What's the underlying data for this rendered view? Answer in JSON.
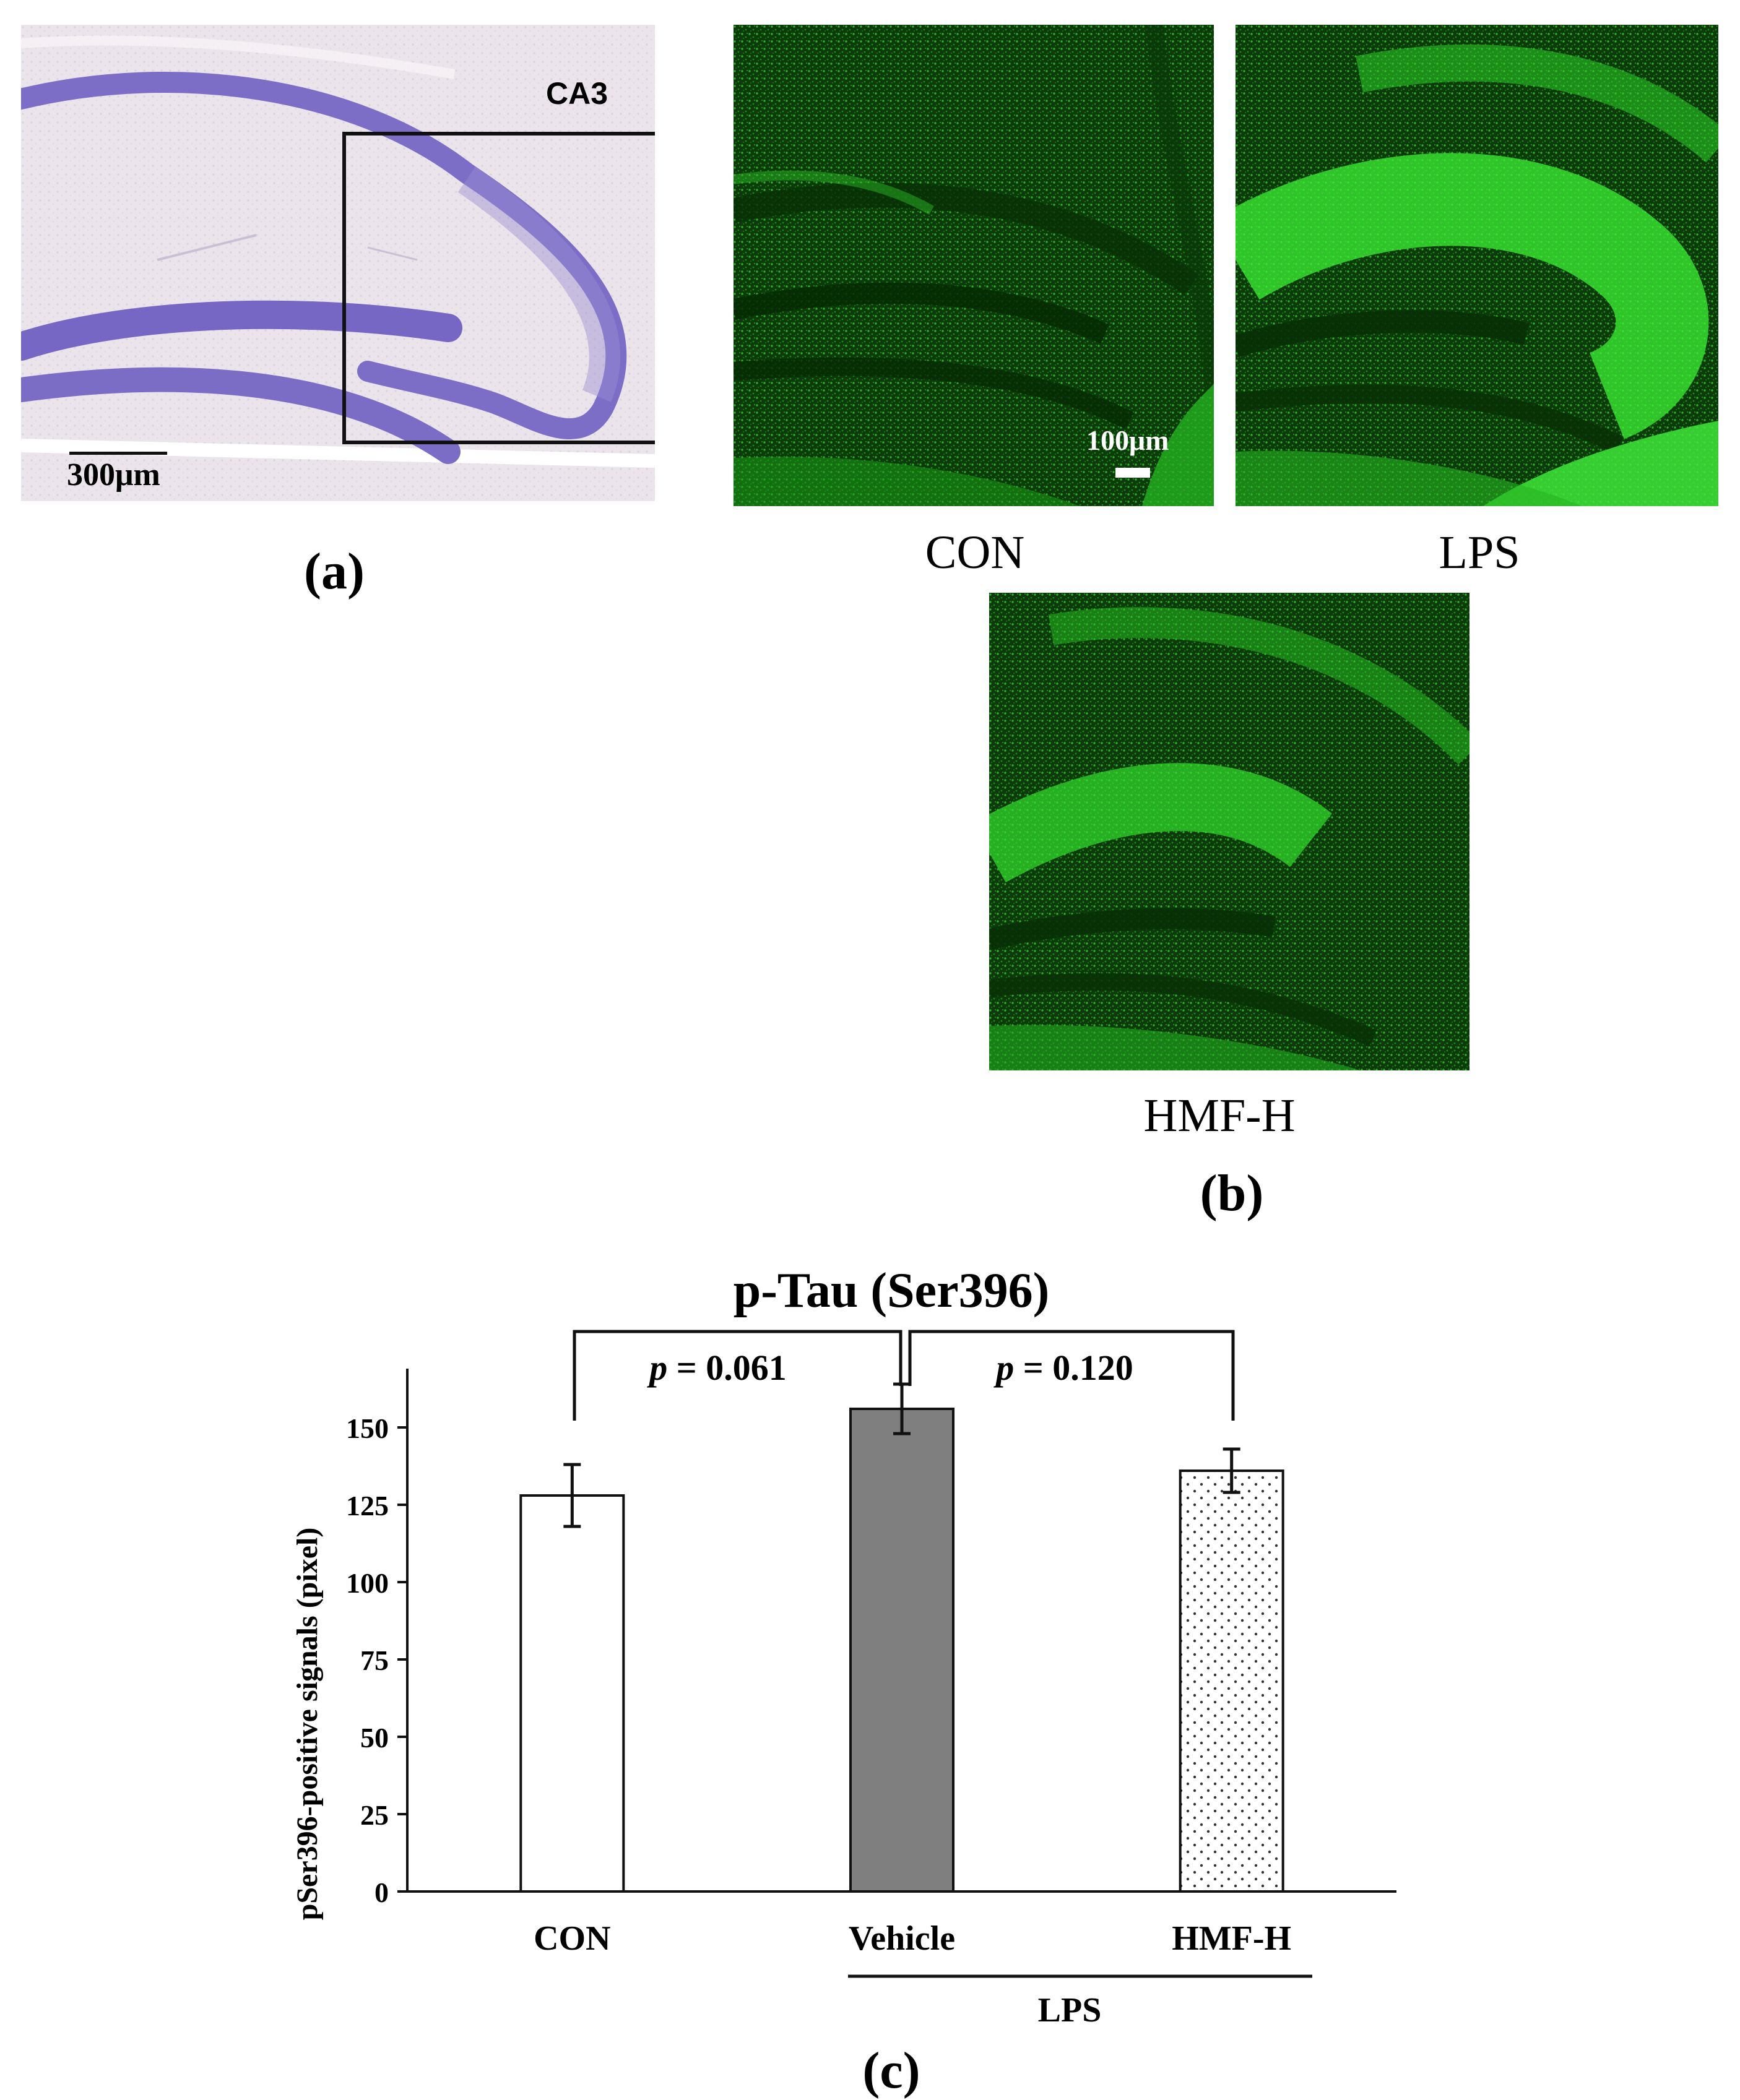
{
  "panel_a": {
    "region_label": "CA3",
    "scale_bar": "300μm",
    "letter": "(a)"
  },
  "panel_b": {
    "scale_bar": "100μm",
    "labels": {
      "con": "CON",
      "lps": "LPS",
      "hmf": "HMF-H"
    },
    "letter": "(b)"
  },
  "panel_c": {
    "letter": "(c)",
    "group_label": "LPS",
    "comparisons": [
      {
        "p_symbol": "p",
        "text": " = 0.061"
      },
      {
        "p_symbol": "p",
        "text": " = 0.120"
      }
    ]
  },
  "colors": {
    "nissl_bg": "#e8e1e6",
    "nissl_stain": "#7a6fc0",
    "fluor_green": "#22c41e",
    "bar_vehicle": "#7f7f7f"
  },
  "chart_data": {
    "type": "bar",
    "title": "p-Tau (Ser396)",
    "xlabel": "",
    "ylabel": "pSer396-positive signals (pixel)",
    "categories": [
      "CON",
      "Vehicle",
      "HMF-H"
    ],
    "values": [
      128,
      156,
      136
    ],
    "errors": [
      10,
      8,
      7
    ],
    "ylim": [
      0,
      175
    ],
    "yticks": [
      0,
      25,
      50,
      75,
      100,
      125,
      150
    ],
    "bar_fills": [
      "white",
      "gray",
      "dotted"
    ],
    "grid": false,
    "legend": "none"
  }
}
